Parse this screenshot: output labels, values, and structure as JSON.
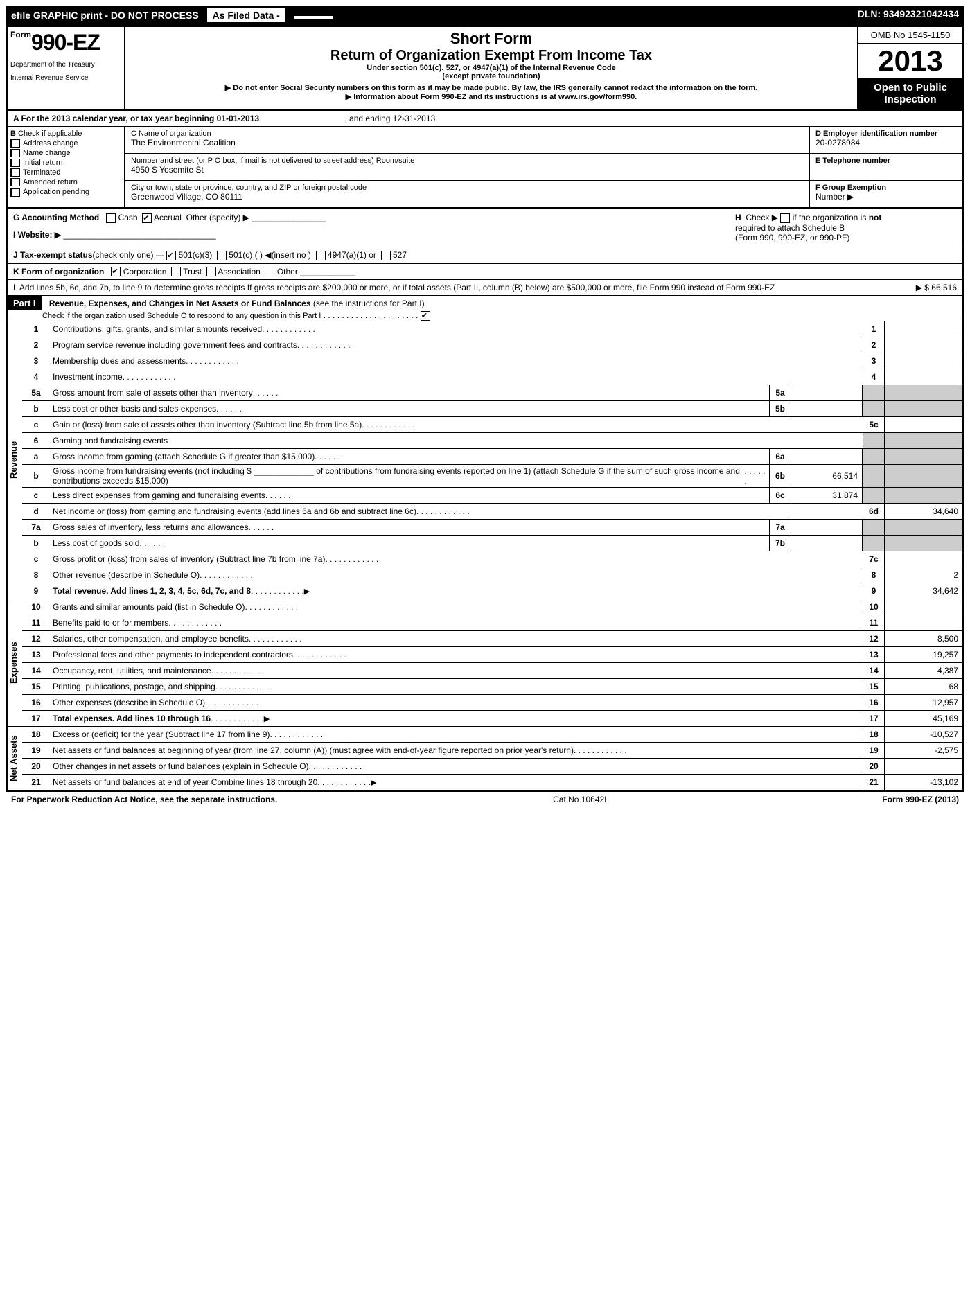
{
  "top": {
    "left": "efile GRAPHIC print - DO NOT PROCESS",
    "mid": "As Filed Data -",
    "dln": "DLN: 93492321042434"
  },
  "hdr": {
    "form_prefix": "Form",
    "form_num": "990-EZ",
    "dept1": "Department of the Treasury",
    "dept2": "Internal Revenue Service",
    "short": "Short Form",
    "title": "Return of Organization Exempt From Income Tax",
    "sub1": "Under section 501(c), 527, or 4947(a)(1) of the Internal Revenue Code",
    "sub2": "(except private foundation)",
    "note1": "▶ Do not enter Social Security numbers on this form as it may be made public. By law, the IRS generally cannot redact the information on the form.",
    "note2_pre": "▶ Information about Form 990-EZ and its instructions is at ",
    "note2_link": "www.irs.gov/form990",
    "omb": "OMB No 1545-1150",
    "year": "2013",
    "open1": "Open to Public",
    "open2": "Inspection"
  },
  "rowA": {
    "label": "A  For the 2013 calendar year, or tax year beginning 01-01-2013",
    "end": ", and ending 12-31-2013"
  },
  "B": {
    "title": "B",
    "hint": "Check if applicable",
    "items": [
      "Address change",
      "Name change",
      "Initial return",
      "Terminated",
      "Amended return",
      "Application pending"
    ]
  },
  "C": {
    "name_lbl": "C Name of organization",
    "name_val": "The Environmental Coalition",
    "addr_lbl": "Number and street (or P O  box, if mail is not delivered to street address) Room/suite",
    "addr_val": "4950 S Yosemite St",
    "city_lbl": "City or town, state or province, country, and ZIP or foreign postal code",
    "city_val": "Greenwood Village, CO  80111"
  },
  "D": {
    "lbl": "D Employer identification number",
    "val": "20-0278984"
  },
  "E": {
    "lbl": "E Telephone number",
    "val": ""
  },
  "F": {
    "lbl": "F Group Exemption",
    "lbl2": "Number",
    "arrow": "▶"
  },
  "G": {
    "lbl": "G Accounting Method",
    "cash": "Cash",
    "accrual": "Accrual",
    "other": "Other (specify) ▶"
  },
  "H": {
    "pre": "H",
    "txt": "Check ▶",
    "box": "if the organization is",
    "not": "not",
    "l2": "required to attach Schedule B",
    "l3": "(Form 990, 990-EZ, or 990-PF)"
  },
  "I": {
    "lbl": "I Website: ▶"
  },
  "J": {
    "lbl": "J Tax-exempt status",
    "sub": "(check only one) —",
    "o1": "501(c)(3)",
    "o2": "501(c) (  ) ◀(insert no )",
    "o3": "4947(a)(1) or",
    "o4": "527"
  },
  "K": {
    "lbl": "K Form of organization",
    "o1": "Corporation",
    "o2": "Trust",
    "o3": "Association",
    "o4": "Other"
  },
  "L": {
    "txt": "L Add lines 5b, 6c, and 7b, to line 9 to determine gross receipts  If gross receipts are $200,000 or more, or if total assets (Part II, column (B) below) are $500,000 or more, file Form 990 instead of Form 990-EZ",
    "val": "▶ $ 66,516"
  },
  "part1": {
    "tag": "Part I",
    "title": "Revenue, Expenses, and Changes in Net Assets or Fund Balances",
    "sub": "(see the instructions for Part I)",
    "check": "Check if the organization used Schedule O to respond to any question in this Part I"
  },
  "sides": {
    "rev": "Revenue",
    "exp": "Expenses",
    "na": "Net Assets"
  },
  "lines": {
    "l1": {
      "n": "1",
      "d": "Contributions, gifts, grants, and similar amounts received",
      "rb": "1",
      "rv": ""
    },
    "l2": {
      "n": "2",
      "d": "Program service revenue including government fees and contracts",
      "rb": "2",
      "rv": ""
    },
    "l3": {
      "n": "3",
      "d": "Membership dues and assessments",
      "rb": "3",
      "rv": ""
    },
    "l4": {
      "n": "4",
      "d": "Investment income",
      "rb": "4",
      "rv": ""
    },
    "l5a": {
      "n": "5a",
      "d": "Gross amount from sale of assets other than inventory",
      "mb": "5a",
      "mv": ""
    },
    "l5b": {
      "n": "b",
      "d": "Less  cost or other basis and sales expenses",
      "mb": "5b",
      "mv": ""
    },
    "l5c": {
      "n": "c",
      "d": "Gain or (loss) from sale of assets other than inventory (Subtract line 5b from line 5a)",
      "rb": "5c",
      "rv": ""
    },
    "l6": {
      "n": "6",
      "d": "Gaming and fundraising events"
    },
    "l6a": {
      "n": "a",
      "d": "Gross income from gaming (attach Schedule G if greater than $15,000)",
      "mb": "6a",
      "mv": ""
    },
    "l6b": {
      "n": "b",
      "d": "Gross income from fundraising events (not including $ _____________ of contributions from fundraising events reported on line 1) (attach Schedule G if the sum of such gross income and contributions exceeds $15,000)",
      "mb": "6b",
      "mv": "66,514"
    },
    "l6c": {
      "n": "c",
      "d": "Less  direct expenses from gaming and fundraising events",
      "mb": "6c",
      "mv": "31,874"
    },
    "l6d": {
      "n": "d",
      "d": "Net income or (loss) from gaming and fundraising events (add lines 6a and 6b and subtract line 6c)",
      "rb": "6d",
      "rv": "34,640"
    },
    "l7a": {
      "n": "7a",
      "d": "Gross sales of inventory, less returns and allowances",
      "mb": "7a",
      "mv": ""
    },
    "l7b": {
      "n": "b",
      "d": "Less  cost of goods sold",
      "mb": "7b",
      "mv": ""
    },
    "l7c": {
      "n": "c",
      "d": "Gross profit or (loss) from sales of inventory (Subtract line 7b from line 7a)",
      "rb": "7c",
      "rv": ""
    },
    "l8": {
      "n": "8",
      "d": "Other revenue (describe in Schedule O)",
      "rb": "8",
      "rv": "2"
    },
    "l9": {
      "n": "9",
      "d": "Total revenue. Add lines 1, 2, 3, 4, 5c, 6d, 7c, and 8",
      "rb": "9",
      "rv": "34,642",
      "arrow": "▶"
    },
    "l10": {
      "n": "10",
      "d": "Grants and similar amounts paid (list in Schedule O)",
      "rb": "10",
      "rv": ""
    },
    "l11": {
      "n": "11",
      "d": "Benefits paid to or for members",
      "rb": "11",
      "rv": ""
    },
    "l12": {
      "n": "12",
      "d": "Salaries, other compensation, and employee benefits",
      "rb": "12",
      "rv": "8,500"
    },
    "l13": {
      "n": "13",
      "d": "Professional fees and other payments to independent contractors",
      "rb": "13",
      "rv": "19,257"
    },
    "l14": {
      "n": "14",
      "d": "Occupancy, rent, utilities, and maintenance",
      "rb": "14",
      "rv": "4,387"
    },
    "l15": {
      "n": "15",
      "d": "Printing, publications, postage, and shipping",
      "rb": "15",
      "rv": "68"
    },
    "l16": {
      "n": "16",
      "d": "Other expenses (describe in Schedule O)",
      "rb": "16",
      "rv": "12,957"
    },
    "l17": {
      "n": "17",
      "d": "Total expenses. Add lines 10 through 16",
      "rb": "17",
      "rv": "45,169",
      "arrow": "▶"
    },
    "l18": {
      "n": "18",
      "d": "Excess or (deficit) for the year (Subtract line 17 from line 9)",
      "rb": "18",
      "rv": "-10,527"
    },
    "l19": {
      "n": "19",
      "d": "Net assets or fund balances at beginning of year (from line 27, column (A)) (must agree with end-of-year figure reported on prior year's return)",
      "rb": "19",
      "rv": "-2,575"
    },
    "l20": {
      "n": "20",
      "d": "Other changes in net assets or fund balances (explain in Schedule O)",
      "rb": "20",
      "rv": ""
    },
    "l21": {
      "n": "21",
      "d": "Net assets or fund balances at end of year  Combine lines 18 through 20",
      "rb": "21",
      "rv": "-13,102",
      "arrow": "▶"
    }
  },
  "footer": {
    "left": "For Paperwork Reduction Act Notice, see the separate instructions.",
    "mid": "Cat No  10642I",
    "right": "Form 990-EZ (2013)"
  }
}
